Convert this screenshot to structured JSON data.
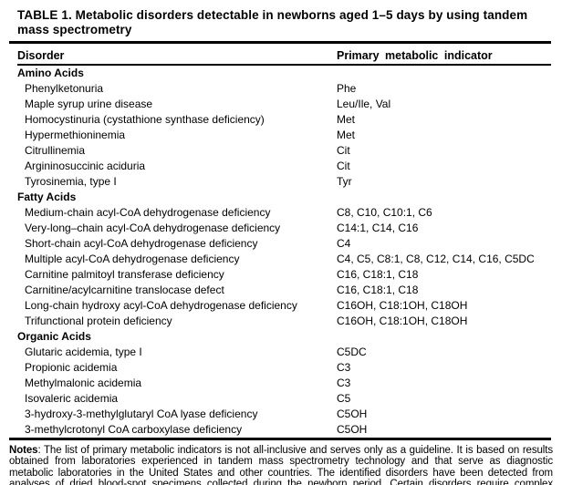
{
  "table": {
    "title": "TABLE 1. Metabolic disorders detectable in newborns aged 1–5 days by using tandem mass spectrometry",
    "columns": [
      "Disorder",
      "Primary metabolic indicator"
    ],
    "sections": [
      {
        "name": "Amino Acids",
        "rows": [
          {
            "disorder": "Phenylketonuria",
            "indicator": "Phe"
          },
          {
            "disorder": "Maple syrup urine disease",
            "indicator": "Leu/Ile, Val"
          },
          {
            "disorder": "Homocystinuria (cystathione synthase deficiency)",
            "indicator": "Met"
          },
          {
            "disorder": "Hypermethioninemia",
            "indicator": "Met"
          },
          {
            "disorder": "Citrullinemia",
            "indicator": "Cit"
          },
          {
            "disorder": "Argininosuccinic aciduria",
            "indicator": "Cit"
          },
          {
            "disorder": "Tyrosinemia, type I",
            "indicator": "Tyr"
          }
        ]
      },
      {
        "name": "Fatty Acids",
        "rows": [
          {
            "disorder": "Medium-chain acyl-CoA dehydrogenase deficiency",
            "indicator": "C8, C10, C10:1, C6"
          },
          {
            "disorder": "Very-long–chain acyl-CoA dehydrogenase deficiency",
            "indicator": "C14:1, C14, C16"
          },
          {
            "disorder": "Short-chain acyl-CoA dehydrogenase deficiency",
            "indicator": "C4"
          },
          {
            "disorder": "Multiple acyl-CoA dehydrogenase deficiency",
            "indicator": "C4, C5, C8:1, C8, C12, C14, C16, C5DC"
          },
          {
            "disorder": "Carnitine palmitoyl transferase deficiency",
            "indicator": "C16, C18:1, C18"
          },
          {
            "disorder": "Carnitine/acylcarnitine translocase defect",
            "indicator": "C16, C18:1, C18"
          },
          {
            "disorder": "Long-chain hydroxy acyl-CoA dehydrogenase deficiency",
            "indicator": "C16OH, C18:1OH, C18OH"
          },
          {
            "disorder": "Trifunctional protein deficiency",
            "indicator": "C16OH, C18:1OH, C18OH"
          }
        ]
      },
      {
        "name": "Organic Acids",
        "rows": [
          {
            "disorder": "Glutaric acidemia, type I",
            "indicator": "C5DC"
          },
          {
            "disorder": "Propionic acidemia",
            "indicator": "C3"
          },
          {
            "disorder": "Methylmalonic acidemia",
            "indicator": "C3"
          },
          {
            "disorder": "Isovaleric acidemia",
            "indicator": "C5"
          },
          {
            "disorder": "3-hydroxy-3-methylglutaryl CoA lyase deficiency",
            "indicator": "C5OH"
          },
          {
            "disorder": "3-methylcrotonyl CoA carboxylase deficiency",
            "indicator": "C5OH"
          }
        ]
      }
    ],
    "notes_label": "Notes",
    "notes_text": ": The list of primary metabolic indicators is not all-inclusive and serves only as a guideline. It is based on results obtained from laboratories experienced in tandem mass spectrometry technology and that serve as diagnostic metabolic laboratories in the United States and other countries. The identified disorders have been detected from analyses of dried blood-spot specimens collected during the newborn period. Certain disorders require complex metabolic profiles and intermetabolic relation to detect disease with low false-positive and no false-negative rates."
  },
  "colors": {
    "text": "#000000",
    "background": "#ffffff",
    "rule": "#000000"
  }
}
